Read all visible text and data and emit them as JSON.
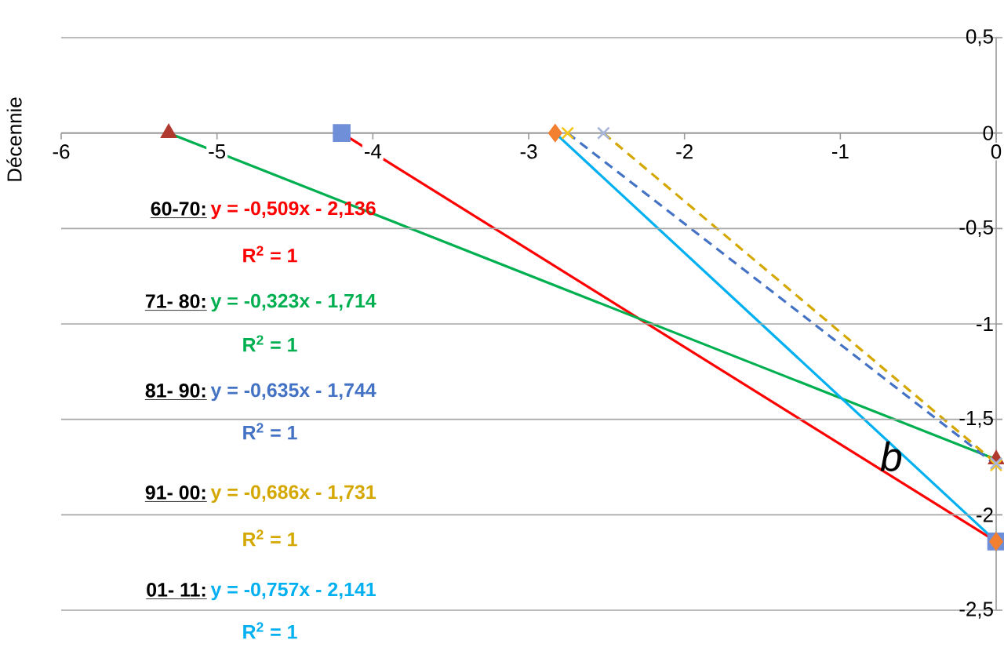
{
  "chart_data": {
    "type": "line",
    "ylabel": "Décennie",
    "xlim": [
      -6,
      0
    ],
    "ylim": [
      -2.5,
      0.5
    ],
    "xticks": [
      -6,
      -5,
      -4,
      -3,
      -2,
      -1,
      0
    ],
    "yticks": [
      {
        "value": 0.5,
        "label": "0,5"
      },
      0,
      {
        "value": -0.5,
        "label": "-0,5"
      },
      -1,
      {
        "value": -1.5,
        "label": "-1,5"
      },
      -2,
      {
        "value": -2.5,
        "label": "-2,5"
      }
    ],
    "grid": "y",
    "series": [
      {
        "color": "#ff0000",
        "x": [
          -4.2,
          0
        ],
        "values": [
          0,
          -2.14
        ],
        "line_style": "solid"
      },
      {
        "color": "#00b050",
        "x": [
          -5.31,
          0
        ],
        "values": [
          0,
          -1.71
        ],
        "line_style": "solid"
      },
      {
        "color": "#4472c4",
        "x": [
          -2.75,
          0
        ],
        "values": [
          0,
          -1.74
        ],
        "line_style": "dashed"
      },
      {
        "color": "#d4a800",
        "x": [
          -2.52,
          0
        ],
        "values": [
          0,
          -1.73
        ],
        "line_style": "dashed"
      },
      {
        "color": "#00b0f0",
        "x": [
          -2.83,
          0
        ],
        "values": [
          0,
          -2.14
        ],
        "line_style": "solid"
      },
      {
        "type": "scatter",
        "marker": "triangle",
        "color": "#b03a2e",
        "x": [
          -5.31,
          0
        ],
        "values": [
          0,
          -1.71
        ]
      },
      {
        "type": "scatter",
        "marker": "square",
        "color": "#6f8fd8",
        "x": [
          -4.2,
          0
        ],
        "values": [
          0,
          -2.14
        ]
      },
      {
        "type": "scatter",
        "marker": "diamond",
        "color": "#f28030",
        "x": [
          -2.83,
          0
        ],
        "values": [
          0,
          -2.14
        ]
      },
      {
        "type": "scatter",
        "marker": "cross",
        "color": "#f5c518",
        "x": [
          -2.75,
          0
        ],
        "values": [
          0,
          -1.74
        ]
      },
      {
        "type": "scatter",
        "marker": "cross",
        "color": "#a6b5d8",
        "x": [
          -2.52,
          0
        ],
        "values": [
          0,
          -1.73
        ]
      }
    ],
    "annotations": [
      "60-70:",
      "y = -0,509x - 2,136",
      "R$^{2}$ = 1",
      "71- 80:",
      "y = -0,323x - 1,714",
      "R$^{2}$ = 1",
      "81- 90:",
      "y = -0,635x - 1,744",
      "R$^{2}$ = 1",
      "91- 00:",
      "y = -0,686x - 1,731",
      "R$^{2}$ = 1",
      "01- 11:",
      "y = -0,757x - 2,141",
      "R$^{2}$ = 1",
      "*b*"
    ]
  }
}
